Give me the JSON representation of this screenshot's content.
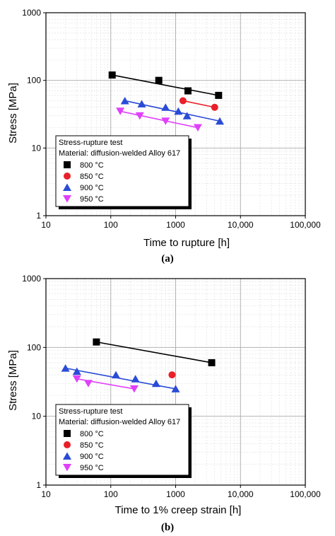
{
  "chart_data": [
    {
      "type": "scatter",
      "caption": "(a)",
      "xlabel": "Time to rupture [h]",
      "ylabel": "Stress [MPa]",
      "xscale": "log",
      "yscale": "log",
      "xlim": [
        10,
        100000
      ],
      "ylim": [
        1,
        1000
      ],
      "xticks": [
        "10",
        "100",
        "1000",
        "10,000",
        "100,000"
      ],
      "yticks": [
        "1",
        "10",
        "100",
        "1000"
      ],
      "grid": true,
      "legend": {
        "title": "Stress-rupture test",
        "subtitle": "Material: diffusion-welded Alloy 617",
        "placement": "bottom-left"
      },
      "series": [
        {
          "name": "800 °C",
          "marker": "square",
          "color": "#000000",
          "x": [
            105,
            550,
            1550,
            4600
          ],
          "y": [
            120,
            100,
            70,
            60
          ],
          "fit_x": [
            105,
            4600
          ],
          "fit_y": [
            120,
            60
          ]
        },
        {
          "name": "850 °C",
          "marker": "circle",
          "color": "#e8202a",
          "x": [
            1300,
            4000
          ],
          "y": [
            50,
            40
          ],
          "fit_x": [
            1300,
            4000
          ],
          "fit_y": [
            50,
            40
          ]
        },
        {
          "name": "900 °C",
          "marker": "triangle-up",
          "color": "#2a4bd7",
          "x": [
            165,
            300,
            700,
            1100,
            1500,
            4800
          ],
          "y": [
            50,
            45,
            40,
            35,
            30,
            25
          ],
          "fit_x": [
            165,
            4800
          ],
          "fit_y": [
            50,
            25
          ]
        },
        {
          "name": "950 °C",
          "marker": "triangle-down",
          "color": "#e040fb",
          "x": [
            140,
            280,
            700,
            2200
          ],
          "y": [
            35,
            30,
            25,
            20
          ],
          "fit_x": [
            140,
            2200
          ],
          "fit_y": [
            35,
            20
          ]
        }
      ]
    },
    {
      "type": "scatter",
      "caption": "(b)",
      "xlabel": "Time to 1% creep strain [h]",
      "ylabel": "Stress [MPa]",
      "xscale": "log",
      "yscale": "log",
      "xlim": [
        10,
        100000
      ],
      "ylim": [
        1,
        1000
      ],
      "xticks": [
        "10",
        "100",
        "1000",
        "10,000",
        "100,000"
      ],
      "yticks": [
        "1",
        "10",
        "100",
        "1000"
      ],
      "grid": true,
      "legend": {
        "title": "Stress-rupture test",
        "subtitle": "Material: diffusion-welded Alloy 617",
        "placement": "bottom-left"
      },
      "series": [
        {
          "name": "800 °C",
          "marker": "square",
          "color": "#000000",
          "x": [
            60,
            3600
          ],
          "y": [
            120,
            60
          ],
          "fit_x": [
            60,
            3600
          ],
          "fit_y": [
            120,
            60
          ]
        },
        {
          "name": "850 °C",
          "marker": "circle",
          "color": "#e8202a",
          "x": [
            880
          ],
          "y": [
            40
          ],
          "fit_x": [],
          "fit_y": []
        },
        {
          "name": "900 °C",
          "marker": "triangle-up",
          "color": "#2a4bd7",
          "x": [
            20,
            30,
            120,
            240,
            500,
            1000
          ],
          "y": [
            50,
            45,
            40,
            35,
            30,
            25
          ],
          "fit_x": [
            20,
            1000
          ],
          "fit_y": [
            50,
            25
          ]
        },
        {
          "name": "950 °C",
          "marker": "triangle-down",
          "color": "#e040fb",
          "x": [
            30,
            45,
            230
          ],
          "y": [
            35,
            30,
            25
          ],
          "fit_x": [
            30,
            230
          ],
          "fit_y": [
            35,
            25
          ]
        }
      ]
    }
  ]
}
